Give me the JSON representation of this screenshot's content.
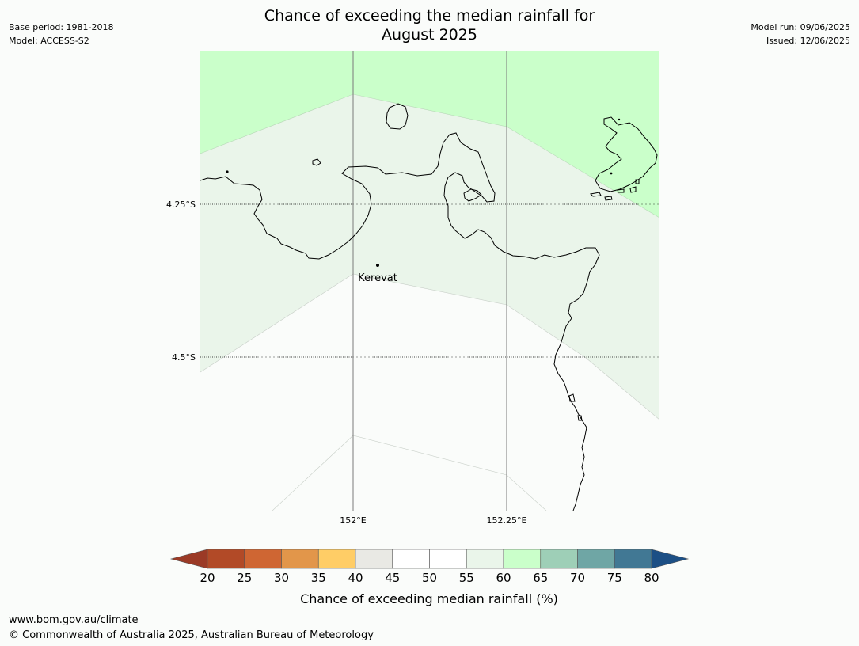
{
  "title": {
    "line1": "Chance of exceeding the median rainfall for",
    "line2": "August 2025"
  },
  "meta_left": {
    "base_period": "Base period: 1981-2018",
    "model": "Model: ACCESS-S2"
  },
  "meta_right": {
    "model_run": "Model run: 09/06/2025",
    "issued": "Issued: 12/06/2025"
  },
  "map": {
    "lat_labels": [
      "4.25°S",
      "4.5°S"
    ],
    "lon_labels": [
      "152°E",
      "152.25°E"
    ],
    "place": {
      "name": "Kerevat"
    },
    "colors": {
      "band_55_60": "#eaf5ea",
      "band_60_65": "#caffca",
      "coast": "#000000",
      "grid": "#7a7a7a"
    }
  },
  "colorbar": {
    "label": "Chance of exceeding median rainfall (%)",
    "ticks": [
      "20",
      "25",
      "30",
      "35",
      "40",
      "45",
      "50",
      "55",
      "60",
      "65",
      "70",
      "75",
      "80"
    ],
    "colors": [
      "#b24a27",
      "#cf6633",
      "#e2964a",
      "#ffcd66",
      "#e9e9e4",
      "#ffffff",
      "#ffffff",
      "#eaf5ea",
      "#caffca",
      "#9ecfb7",
      "#6fa6a5",
      "#417894"
    ],
    "under_color": "#9b3a26",
    "over_color": "#1c4f85"
  },
  "footer": {
    "url": "www.bom.gov.au/climate",
    "copyright": "© Commonwealth of Australia 2025, Australian Bureau of Meteorology"
  }
}
